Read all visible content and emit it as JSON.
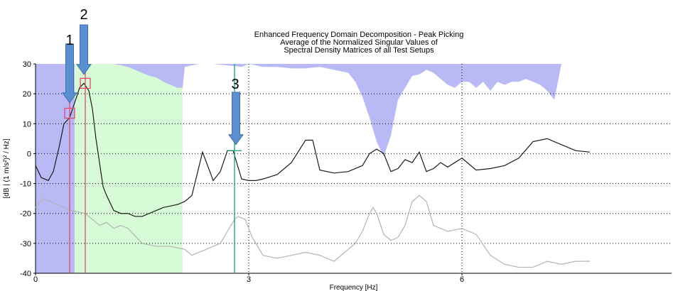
{
  "chart_data": {
    "type": "line",
    "title_lines": [
      "Enhanced Frequency Domain Decomposition - Peak Picking",
      "Average of the Normalized Singular Values of",
      "Spectral Density Matrices of all Test Setups"
    ],
    "xlabel": "Frequency [Hz]",
    "ylabel": "[dB | (1 m/s²)² / Hz]",
    "xlim": [
      0,
      8.95
    ],
    "ylim": [
      -40,
      30
    ],
    "x_ticks": [
      0,
      3,
      6
    ],
    "y_ticks": [
      30,
      20,
      10,
      0,
      -10,
      -20,
      -30,
      -40
    ],
    "grid": "dotted",
    "colors": {
      "first_singular": "#1a1a1a",
      "second_singular": "#b4b4b4",
      "fill_blue": "#b9b9f5",
      "fill_green": "#d7fad7",
      "peak_line_red": "#dc4a6e",
      "peak_line_green": "#1f9e6e",
      "arrow": "#5b8fcf"
    },
    "series": [
      {
        "x": [
          0,
          0.08,
          0.18,
          0.25,
          0.33,
          0.4,
          0.48,
          0.55,
          0.62,
          0.68,
          0.75,
          0.8,
          0.85,
          0.9,
          0.95,
          1.0,
          1.1,
          1.2,
          1.3,
          1.4,
          1.5,
          1.6,
          1.8,
          2.0,
          2.1,
          2.2,
          2.35,
          2.5,
          2.6,
          2.7,
          2.78,
          2.9,
          3.0,
          3.1,
          3.2,
          3.4,
          3.6,
          3.8,
          3.9,
          4.0,
          4.2,
          4.4,
          4.6,
          4.7,
          4.8,
          4.9,
          5.0,
          5.1,
          5.2,
          5.3,
          5.4,
          5.5,
          5.6,
          5.7,
          5.8,
          6.0,
          6.2,
          6.4,
          6.6,
          6.8,
          7.0,
          7.2,
          7.4,
          7.6,
          7.8
        ],
        "values": [
          -4,
          -8,
          -9,
          -6,
          2,
          10,
          12,
          17,
          22,
          23.5,
          21,
          15,
          5,
          -3,
          -11,
          -14,
          -19,
          -20,
          -20,
          -21,
          -21,
          -20,
          -18,
          -17,
          -16,
          -14,
          0.5,
          -9,
          -6,
          1,
          1,
          -8.5,
          -9,
          -9,
          -8.5,
          -7,
          -3,
          4.5,
          4.5,
          -5.5,
          -6.5,
          -6,
          -4,
          0,
          1.5,
          0,
          -6,
          -5,
          -2,
          -3,
          0.5,
          -6,
          -5,
          -3,
          -4.5,
          -1.5,
          -5.5,
          -5,
          -4,
          -1.5,
          4,
          5,
          3,
          1,
          0.5
        ]
      },
      {
        "x": [
          0,
          0.1,
          0.2,
          0.3,
          0.4,
          0.5,
          0.6,
          0.7,
          0.8,
          0.9,
          1.0,
          1.1,
          1.2,
          1.3,
          1.5,
          1.7,
          1.9,
          2.1,
          2.2,
          2.4,
          2.6,
          2.7,
          2.8,
          2.85,
          2.95,
          3.05,
          3.2,
          3.4,
          3.6,
          3.8,
          4.0,
          4.2,
          4.4,
          4.5,
          4.6,
          4.7,
          4.75,
          4.8,
          4.9,
          5.0,
          5.1,
          5.2,
          5.3,
          5.4,
          5.5,
          5.6,
          5.7,
          5.8,
          6.0,
          6.2,
          6.4,
          6.6,
          6.8,
          7.0,
          7.2,
          7.4,
          7.6,
          7.8
        ],
        "values": [
          -18,
          -15,
          -16,
          -17,
          -18,
          -19,
          -19.5,
          -20,
          -22,
          -24,
          -23,
          -25,
          -24,
          -25,
          -30,
          -31,
          -31,
          -32,
          -34,
          -32,
          -30,
          -26,
          -22,
          -21,
          -22,
          -28,
          -34,
          -35,
          -34,
          -33,
          -34,
          -36,
          -32,
          -30,
          -26,
          -20,
          -18,
          -20,
          -27,
          -29,
          -28,
          -24,
          -16,
          -14,
          -16,
          -24,
          -25,
          -26,
          -25,
          -27,
          -34,
          -37,
          -38,
          -38,
          -36,
          -37,
          -36,
          -36
        ]
      }
    ],
    "fill_regions": [
      {
        "color": "blue",
        "x_start": 0,
        "x_end": 0.55
      },
      {
        "color": "green",
        "x_start": 0.55,
        "x_end": 2.07
      }
    ],
    "upper_band": {
      "x": [
        0.55,
        0.7,
        0.85,
        1.0,
        1.1,
        1.2,
        1.3,
        1.4,
        1.5,
        1.6,
        1.7,
        1.8,
        1.9,
        2.0,
        2.07,
        2.1,
        2.3,
        2.5,
        2.7,
        2.9,
        3.0,
        3.2,
        3.4,
        3.6,
        3.8,
        4.0,
        4.2,
        4.4,
        4.5,
        4.6,
        4.7,
        4.8,
        4.9,
        5.0,
        5.1,
        5.2,
        5.3,
        5.4,
        5.5,
        5.6,
        5.7,
        5.8,
        5.9,
        6.0,
        6.1,
        6.2,
        6.3,
        6.4,
        6.5,
        6.6,
        6.7,
        6.8,
        6.9,
        7.0,
        7.1,
        7.2,
        7.3,
        7.4,
        7.45,
        7.5,
        7.6,
        7.7,
        7.8
      ],
      "values": [
        30,
        30,
        30,
        30,
        30,
        29.5,
        29,
        28,
        27,
        26,
        25.5,
        24,
        23,
        22,
        22,
        29,
        30,
        30,
        29.5,
        29,
        30,
        29,
        29,
        28.5,
        28.5,
        29,
        28,
        27,
        24,
        19,
        12,
        4,
        -1,
        6,
        18,
        22,
        26,
        26.5,
        28,
        27,
        25,
        23,
        22,
        24,
        24,
        22,
        24,
        21,
        24,
        23,
        24,
        24,
        25,
        24,
        23,
        21,
        18,
        30,
        30,
        30,
        30,
        30,
        30
      ]
    },
    "peak_lines": [
      {
        "x": 0.48,
        "color": "red"
      },
      {
        "x": 0.7,
        "color": "red"
      },
      {
        "x": 2.8,
        "color": "green"
      }
    ],
    "peak_markers": [
      {
        "x": 0.48,
        "y": 13.5
      },
      {
        "x": 0.7,
        "y": 23.5
      }
    ],
    "annotations": [
      {
        "label": "1",
        "x": 0.48,
        "y_tip": 17
      },
      {
        "label": "2",
        "x": 0.68,
        "y_tip": 26.5
      },
      {
        "label": "3",
        "x": 2.82,
        "y_tip": 3
      }
    ]
  }
}
